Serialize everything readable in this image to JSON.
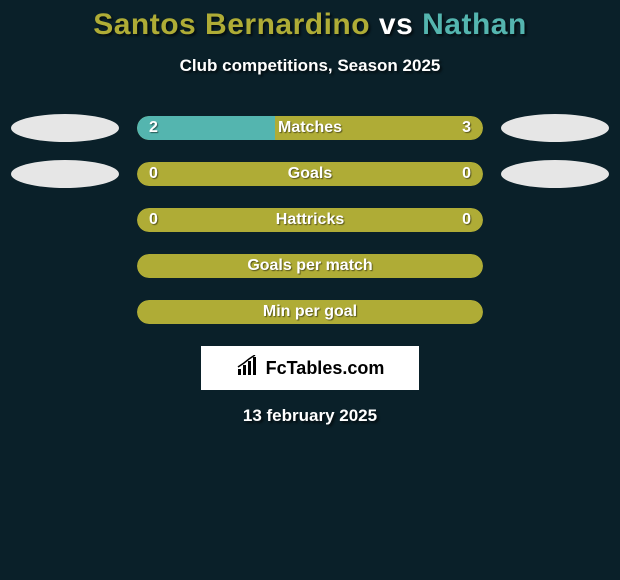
{
  "background_color": "#0a2029",
  "title": {
    "player1": {
      "name": "Santos Bernardino",
      "color": "#afac36"
    },
    "vs": {
      "text": "vs",
      "color": "#ffffff"
    },
    "player2": {
      "name": "Nathan",
      "color": "#54b5af"
    },
    "fontsize": 30
  },
  "subtitle": {
    "text": "Club competitions, Season 2025",
    "fontsize": 17,
    "color": "#ffffff"
  },
  "rows": [
    {
      "label": "Matches",
      "left_value": "2",
      "right_value": "3",
      "left_pct": 40,
      "left_color": "#54b5af",
      "right_color": "#afac36",
      "left_badge_color": "#e6e6e6",
      "right_badge_color": "#e6e6e6",
      "has_badges": true
    },
    {
      "label": "Goals",
      "left_value": "0",
      "right_value": "0",
      "left_pct": 0,
      "left_color": "#54b5af",
      "right_color": "#afac36",
      "left_badge_color": "#e6e6e6",
      "right_badge_color": "#e6e6e6",
      "has_badges": true
    },
    {
      "label": "Hattricks",
      "left_value": "0",
      "right_value": "0",
      "left_pct": 0,
      "left_color": "#54b5af",
      "right_color": "#afac36",
      "has_badges": false
    },
    {
      "label": "Goals per match",
      "left_value": "",
      "right_value": "",
      "left_pct": 0,
      "left_color": "#54b5af",
      "right_color": "#afac36",
      "has_badges": false
    },
    {
      "label": "Min per goal",
      "left_value": "",
      "right_value": "",
      "left_pct": 0,
      "left_color": "#54b5af",
      "right_color": "#afac36",
      "has_badges": false
    }
  ],
  "brand": {
    "text": "FcTables.com",
    "bg": "#ffffff",
    "text_color": "#000000"
  },
  "date": {
    "text": "13 february 2025",
    "color": "#ffffff",
    "fontsize": 17
  }
}
